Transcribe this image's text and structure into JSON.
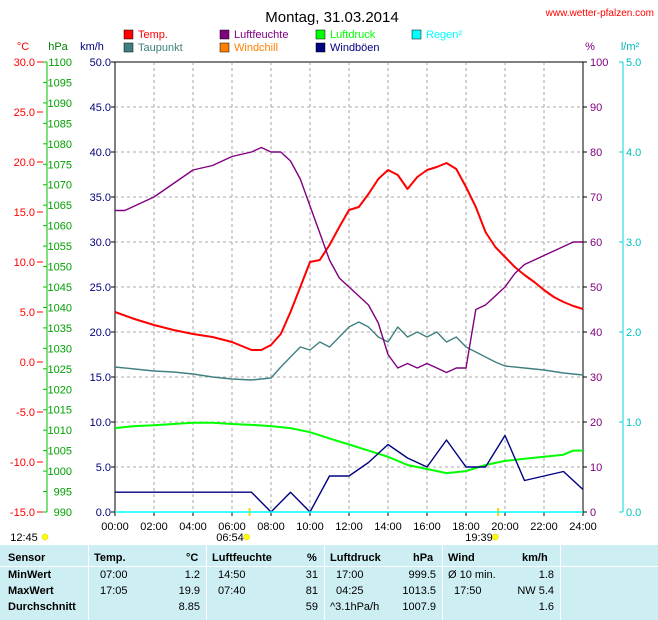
{
  "header": {
    "title": "Montag, 31.03.2014",
    "site": "www.wetter-pfalzen.com"
  },
  "legend": {
    "items": [
      {
        "label": "Temp.",
        "color": "#ff0000"
      },
      {
        "label": "Luftfeuchte",
        "color": "#800080"
      },
      {
        "label": "Luftdruck",
        "color": "#00ff00"
      },
      {
        "label": "Regen²",
        "color": "#00ffff"
      },
      {
        "label": "Taupunkt",
        "color": "#408080"
      },
      {
        "label": "Windchill",
        "color": "#ff8000"
      },
      {
        "label": "Windböen",
        "color": "#000080"
      }
    ]
  },
  "axes": {
    "units": {
      "temp": "°C",
      "pressure": "hPa",
      "wind": "km/h",
      "humidity": "%",
      "rain": "l/m²"
    },
    "temp_ticks": [
      "30.0",
      "25.0",
      "20.0",
      "15.0",
      "10.0",
      "5.0",
      "0.0",
      "-5.0",
      "-10.0",
      "-15.0"
    ],
    "pressure_ticks": [
      "1100",
      "1095",
      "1090",
      "1085",
      "1080",
      "1075",
      "1070",
      "1065",
      "1060",
      "1055",
      "1050",
      "1045",
      "1040",
      "1035",
      "1030",
      "1025",
      "1020",
      "1015",
      "1010",
      "1005",
      "1000",
      "995",
      "990"
    ],
    "wind_ticks": [
      "50.0",
      "45.0",
      "40.0",
      "35.0",
      "30.0",
      "25.0",
      "20.0",
      "15.0",
      "10.0",
      "5.0",
      "0.0"
    ],
    "humidity_ticks": [
      "100",
      "90",
      "80",
      "70",
      "60",
      "50",
      "40",
      "30",
      "20",
      "10",
      "0"
    ],
    "rain_ticks": [
      "5.0",
      "4.0",
      "3.0",
      "2.0",
      "1.0",
      "0.0"
    ],
    "time_ticks": [
      "00:00",
      "02:00",
      "04:00",
      "06:00",
      "08:00",
      "10:00",
      "12:00",
      "14:00",
      "16:00",
      "18:00",
      "20:00",
      "22:00",
      "24:00"
    ],
    "sunrise": "06:54",
    "sunset": "19:39",
    "moon": "12:45"
  },
  "chart_data": {
    "type": "line",
    "x_unit": "hour",
    "xlim": [
      0,
      24
    ],
    "series": [
      {
        "name": "Temp.",
        "axis": "temp",
        "color": "#ff0000",
        "x": [
          0,
          1,
          2,
          3,
          4,
          5,
          6,
          6.5,
          7,
          7.5,
          8,
          8.5,
          9,
          9.5,
          10,
          10.5,
          11,
          11.5,
          12,
          12.5,
          13,
          13.5,
          14,
          14.5,
          15,
          15.5,
          16,
          16.5,
          17,
          17.5,
          18,
          18.5,
          19,
          19.5,
          20,
          20.5,
          21,
          21.5,
          22,
          22.5,
          23,
          23.5,
          24
        ],
        "values": [
          5.0,
          4.3,
          3.7,
          3.2,
          2.8,
          2.5,
          2.0,
          1.6,
          1.2,
          1.2,
          1.7,
          2.8,
          5.0,
          7.5,
          10.0,
          10.2,
          11.7,
          13.5,
          15.2,
          15.5,
          16.8,
          18.3,
          19.2,
          18.7,
          17.3,
          18.5,
          19.2,
          19.5,
          19.9,
          19.3,
          17.5,
          15.5,
          13.0,
          11.5,
          10.5,
          9.5,
          8.7,
          8.0,
          7.2,
          6.5,
          6.0,
          5.6,
          5.3
        ]
      },
      {
        "name": "Taupunkt",
        "axis": "temp",
        "color": "#408080",
        "x": [
          0,
          1,
          2,
          3,
          4,
          5,
          6,
          7,
          8,
          8.5,
          9,
          9.5,
          10,
          10.5,
          11,
          11.5,
          12,
          12.5,
          13,
          13.5,
          14,
          14.5,
          15,
          15.5,
          16,
          16.5,
          17,
          17.5,
          18,
          18.5,
          19,
          19.5,
          20,
          21,
          22,
          23,
          24
        ],
        "values": [
          -0.5,
          -0.7,
          -0.9,
          -1.0,
          -1.2,
          -1.5,
          -1.7,
          -1.8,
          -1.6,
          -0.5,
          0.5,
          1.5,
          1.2,
          2.0,
          1.5,
          2.5,
          3.5,
          4.0,
          3.5,
          2.5,
          2.0,
          3.5,
          2.5,
          3.0,
          2.5,
          3.0,
          2.0,
          2.5,
          1.5,
          1.0,
          0.5,
          0.0,
          -0.4,
          -0.6,
          -0.8,
          -1.1,
          -1.3
        ]
      },
      {
        "name": "Luftfeuchte",
        "axis": "humidity",
        "color": "#800080",
        "x": [
          0,
          0.5,
          1,
          2,
          3,
          4,
          5,
          6,
          7,
          7.5,
          8,
          8.5,
          9,
          9.5,
          10,
          10.5,
          11,
          11.5,
          12,
          12.5,
          13,
          13.5,
          14,
          14.5,
          15,
          15.5,
          16,
          16.5,
          17,
          17.5,
          18,
          18.5,
          19,
          19.5,
          20,
          20.5,
          21,
          21.5,
          22,
          22.5,
          23,
          23.5,
          24
        ],
        "values": [
          67,
          67,
          68,
          70,
          73,
          76,
          77,
          79,
          80,
          81,
          80,
          80,
          78,
          74,
          68,
          62,
          56,
          52,
          50,
          48,
          46,
          42,
          35,
          32,
          33,
          32,
          33,
          32,
          31,
          32,
          32,
          45,
          46,
          48,
          50,
          53,
          55,
          56,
          57,
          58,
          59,
          60,
          60
        ]
      },
      {
        "name": "Luftdruck",
        "axis": "pressure",
        "color": "#00ff00",
        "x": [
          0,
          1,
          2,
          3,
          4,
          5,
          6,
          7,
          8,
          9,
          10,
          11,
          12,
          13,
          14,
          15,
          16,
          17,
          18,
          19,
          20,
          21,
          22,
          23,
          23.5,
          24
        ],
        "values": [
          1010.5,
          1011.0,
          1011.2,
          1011.5,
          1011.8,
          1011.8,
          1011.5,
          1011.3,
          1011.0,
          1010.5,
          1009.5,
          1008.0,
          1006.5,
          1005.0,
          1003.5,
          1001.5,
          1000.5,
          999.5,
          1000.0,
          1001.5,
          1002.5,
          1003.0,
          1003.5,
          1004.0,
          1005.0,
          1005.0
        ]
      },
      {
        "name": "Windböen",
        "axis": "wind",
        "color": "#000080",
        "x": [
          0,
          1,
          2,
          3,
          4,
          5,
          6,
          7,
          8,
          9,
          10,
          11,
          12,
          13,
          14,
          15,
          16,
          17,
          18,
          19,
          20,
          21,
          22,
          23,
          24
        ],
        "values": [
          2.2,
          2.2,
          2.2,
          2.2,
          2.2,
          2.2,
          2.2,
          2.2,
          0,
          2.2,
          0,
          4.0,
          4.0,
          5.5,
          7.5,
          6.0,
          5.0,
          8.0,
          5.0,
          5.0,
          8.5,
          3.5,
          4.0,
          4.5,
          2.5
        ]
      },
      {
        "name": "Regen²",
        "axis": "rain",
        "color": "#00ffff",
        "x": [
          0,
          24
        ],
        "values": [
          0,
          0
        ]
      }
    ],
    "ylim": {
      "temp": [
        -15,
        30
      ],
      "pressure": [
        990,
        1100
      ],
      "wind": [
        0,
        50
      ],
      "humidity": [
        0,
        100
      ],
      "rain": [
        0,
        5
      ]
    },
    "grid": true
  },
  "stats": {
    "headers": {
      "sensor": "Sensor",
      "temp": "Temp.",
      "temp_unit": "°C",
      "hum": "Luftfeuchte",
      "hum_unit": "%",
      "press": "Luftdruck",
      "press_unit": "hPa",
      "wind": "Wind",
      "wind_unit": "km/h"
    },
    "rows": [
      {
        "label": "MinWert",
        "t_time": "07:00",
        "t_val": "1.2",
        "h_time": "14:50",
        "h_val": "31",
        "p_time": "17:00",
        "p_val": "999.5",
        "w_time": "Ø 10 min.",
        "w_val": "1.8"
      },
      {
        "label": "MaxWert",
        "t_time": "17:05",
        "t_val": "19.9",
        "h_time": "07:40",
        "h_val": "81",
        "p_time": "04:25",
        "p_val": "1013.5",
        "w_time": "17:50",
        "w_val": "NW 5.4"
      },
      {
        "label": "Durchschnitt",
        "t_time": "",
        "t_val": "8.85",
        "h_time": "",
        "h_val": "59",
        "p_time": "^3.1hPa/h",
        "p_val": "1007.9",
        "w_time": "",
        "w_val": "1.6"
      }
    ]
  }
}
